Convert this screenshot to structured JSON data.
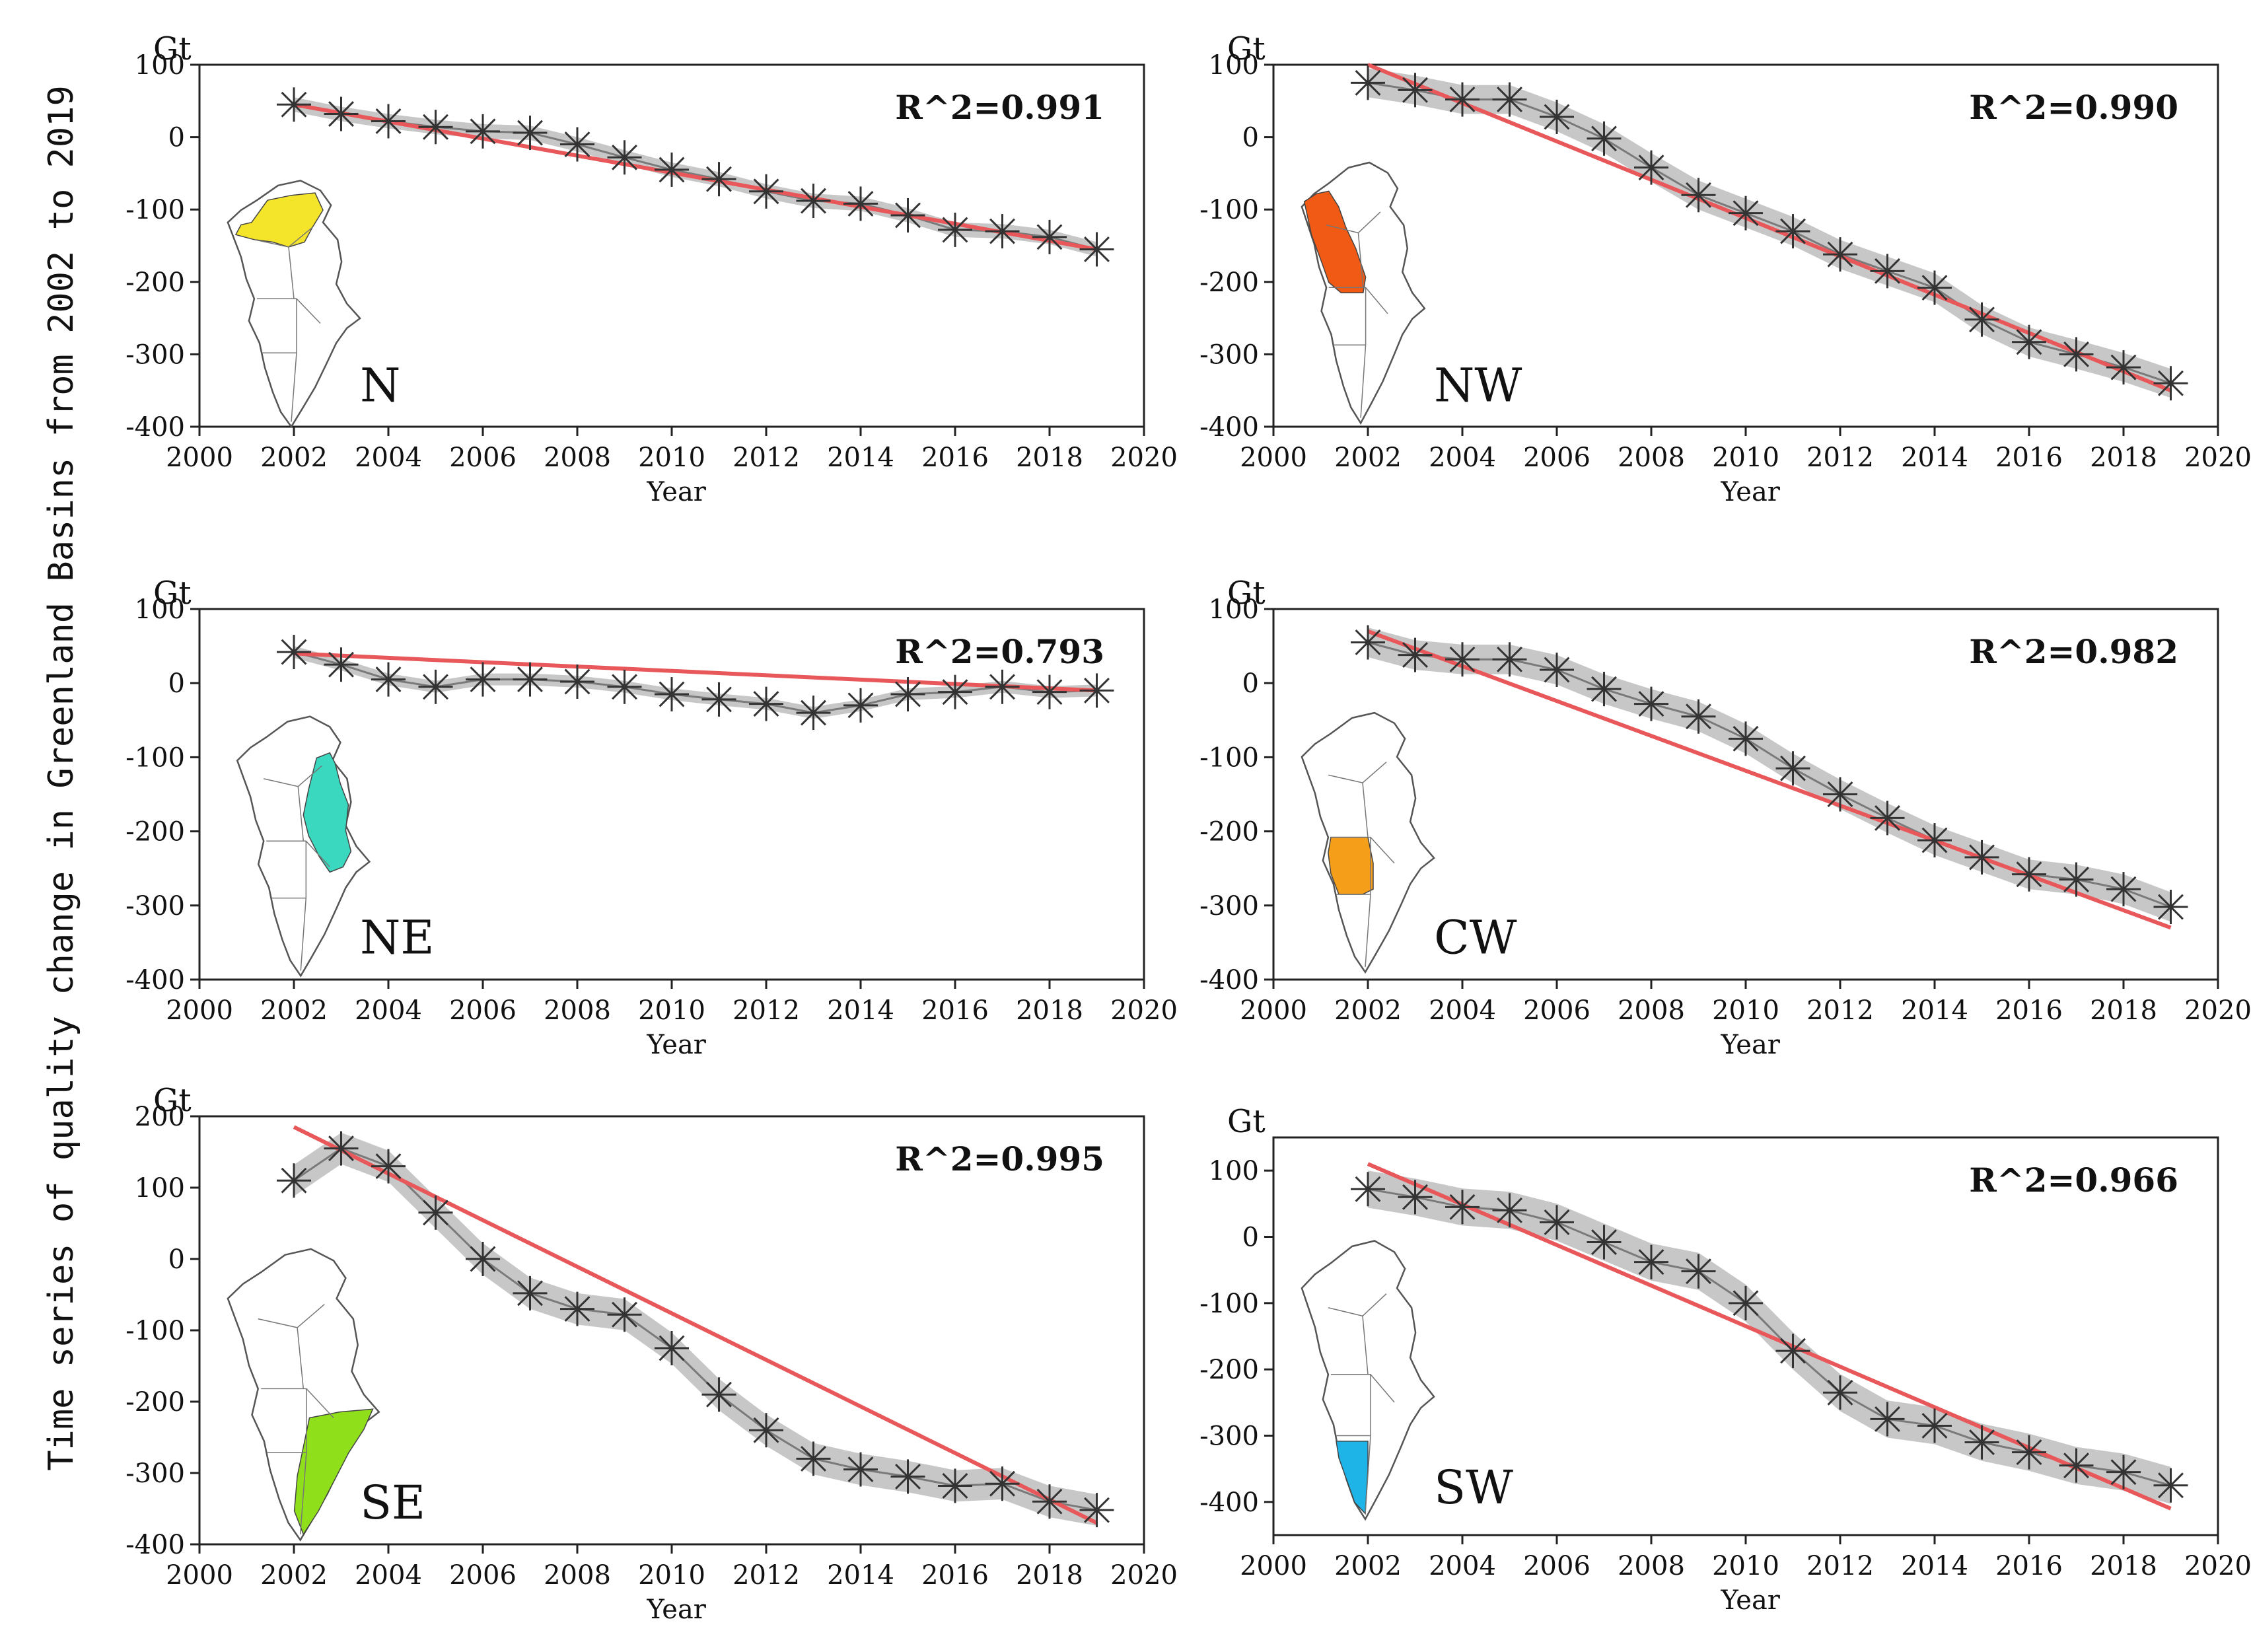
{
  "colors": {
    "trend": "#e8585a",
    "band": "#bdbdbd",
    "marker": "#333333",
    "map_outline": "#555555"
  },
  "chart_data": {
    "type": "line",
    "global_ylabel": "Time series of quality change in Greenland Basins from 2002 to 2019",
    "panels": [
      {
        "region": "N",
        "r2_label": "R^2=0.991",
        "unit": "Gt",
        "xlabel": "Year",
        "xlim": [
          2000,
          2020
        ],
        "ylim": [
          -400,
          100
        ],
        "xticks": [
          2000,
          2002,
          2004,
          2006,
          2008,
          2010,
          2012,
          2014,
          2016,
          2018,
          2020
        ],
        "yticks": [
          100,
          0,
          -100,
          -200,
          -300,
          -400
        ],
        "x": [
          2002,
          2003,
          2004,
          2005,
          2006,
          2007,
          2008,
          2009,
          2010,
          2011,
          2012,
          2013,
          2014,
          2015,
          2016,
          2017,
          2018,
          2019
        ],
        "values": [
          45,
          32,
          22,
          14,
          8,
          6,
          -10,
          -28,
          -45,
          -58,
          -75,
          -88,
          -92,
          -108,
          -128,
          -130,
          -138,
          -155
        ],
        "band": 10,
        "trend": [
          45,
          -155
        ],
        "map_color": "#f5e52a",
        "basin": "N"
      },
      {
        "region": "NW",
        "r2_label": "R^2=0.990",
        "unit": "Gt",
        "xlabel": "Year",
        "xlim": [
          2000,
          2020
        ],
        "ylim": [
          -400,
          100
        ],
        "xticks": [
          2000,
          2002,
          2004,
          2006,
          2008,
          2010,
          2012,
          2014,
          2016,
          2018,
          2020
        ],
        "yticks": [
          100,
          0,
          -100,
          -200,
          -300,
          -400
        ],
        "x": [
          2002,
          2003,
          2004,
          2005,
          2006,
          2007,
          2008,
          2009,
          2010,
          2011,
          2012,
          2013,
          2014,
          2015,
          2016,
          2017,
          2018,
          2019
        ],
        "values": [
          75,
          65,
          52,
          52,
          28,
          -2,
          -42,
          -80,
          -105,
          -130,
          -162,
          -185,
          -208,
          -252,
          -283,
          -300,
          -318,
          -340
        ],
        "band": 20,
        "trend": [
          100,
          -350
        ],
        "map_color": "#f05a14",
        "basin": "NW"
      },
      {
        "region": "NE",
        "r2_label": "R^2=0.793",
        "unit": "Gt",
        "xlabel": "Year",
        "xlim": [
          2000,
          2020
        ],
        "ylim": [
          -400,
          100
        ],
        "xticks": [
          2000,
          2002,
          2004,
          2006,
          2008,
          2010,
          2012,
          2014,
          2016,
          2018,
          2020
        ],
        "yticks": [
          100,
          0,
          -100,
          -200,
          -300,
          -400
        ],
        "x": [
          2002,
          2003,
          2004,
          2005,
          2006,
          2007,
          2008,
          2009,
          2010,
          2011,
          2012,
          2013,
          2014,
          2015,
          2016,
          2017,
          2018,
          2019
        ],
        "values": [
          42,
          25,
          5,
          -5,
          5,
          5,
          2,
          -5,
          -15,
          -22,
          -28,
          -40,
          -30,
          -15,
          -12,
          -5,
          -12,
          -10
        ],
        "band": 8,
        "trend": [
          40,
          -10
        ],
        "map_color": "#3ad8bf",
        "basin": "NE"
      },
      {
        "region": "CW",
        "r2_label": "R^2=0.982",
        "unit": "Gt",
        "xlabel": "Year",
        "xlim": [
          2000,
          2020
        ],
        "ylim": [
          -400,
          100
        ],
        "xticks": [
          2000,
          2002,
          2004,
          2006,
          2008,
          2010,
          2012,
          2014,
          2016,
          2018,
          2020
        ],
        "yticks": [
          100,
          0,
          -100,
          -200,
          -300,
          -400
        ],
        "x": [
          2002,
          2003,
          2004,
          2005,
          2006,
          2007,
          2008,
          2009,
          2010,
          2011,
          2012,
          2013,
          2014,
          2015,
          2016,
          2017,
          2018,
          2019
        ],
        "values": [
          55,
          38,
          32,
          32,
          18,
          -8,
          -28,
          -45,
          -75,
          -115,
          -150,
          -182,
          -212,
          -235,
          -258,
          -265,
          -278,
          -302
        ],
        "band": 20,
        "trend": [
          70,
          -330
        ],
        "map_color": "#f59e1a",
        "basin": "CW"
      },
      {
        "region": "SE",
        "r2_label": "R^2=0.995",
        "unit": "Gt",
        "xlabel": "Year",
        "xlim": [
          2000,
          2020
        ],
        "ylim": [
          -400,
          200
        ],
        "xticks": [
          2000,
          2002,
          2004,
          2006,
          2008,
          2010,
          2012,
          2014,
          2016,
          2018,
          2020
        ],
        "yticks": [
          200,
          100,
          0,
          -100,
          -200,
          -300,
          -400
        ],
        "x": [
          2002,
          2003,
          2004,
          2005,
          2006,
          2007,
          2008,
          2009,
          2010,
          2011,
          2012,
          2013,
          2014,
          2015,
          2016,
          2017,
          2018,
          2019
        ],
        "values": [
          110,
          155,
          130,
          65,
          0,
          -48,
          -70,
          -78,
          -125,
          -190,
          -240,
          -280,
          -295,
          -305,
          -318,
          -315,
          -340,
          -352
        ],
        "band": 22,
        "trend": [
          185,
          -370
        ],
        "map_color": "#8fe01a",
        "basin": "SE"
      },
      {
        "region": "SW",
        "r2_label": "R^2=0.966",
        "unit": "Gt",
        "xlabel": "Year",
        "xlim": [
          2000,
          2020
        ],
        "ylim": [
          -450,
          150
        ],
        "xticks": [
          2000,
          2002,
          2004,
          2006,
          2008,
          2010,
          2012,
          2014,
          2016,
          2018,
          2020
        ],
        "yticks": [
          100,
          0,
          -100,
          -200,
          -300,
          -400
        ],
        "x": [
          2002,
          2003,
          2004,
          2005,
          2006,
          2007,
          2008,
          2009,
          2010,
          2011,
          2012,
          2013,
          2014,
          2015,
          2016,
          2017,
          2018,
          2019
        ],
        "values": [
          72,
          60,
          45,
          40,
          22,
          -8,
          -38,
          -52,
          -100,
          -172,
          -235,
          -275,
          -285,
          -310,
          -325,
          -345,
          -355,
          -375
        ],
        "band": 28,
        "trend": [
          110,
          -410
        ],
        "map_color": "#1eb4e8",
        "basin": "SW"
      }
    ]
  }
}
